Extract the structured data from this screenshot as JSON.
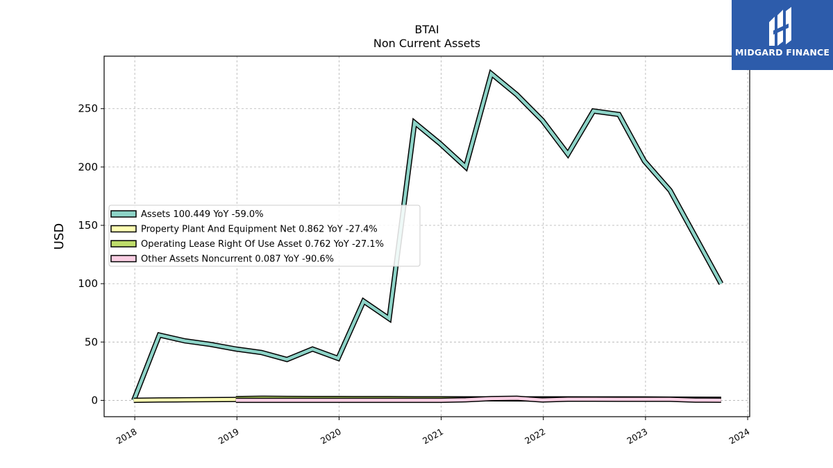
{
  "chart_data": {
    "type": "line",
    "title": "BTAI",
    "subtitle": "Non Current  Assets",
    "ylabel": "USD",
    "xlabel": "",
    "ylim": [
      -14,
      295
    ],
    "xlim": [
      2017.7,
      2024.02
    ],
    "yticks": [
      0,
      50,
      100,
      150,
      200,
      250
    ],
    "xticks": [
      "2018",
      "2019",
      "2020",
      "2021",
      "2022",
      "2023",
      "2024"
    ],
    "grid": true,
    "legend_position": "center-left",
    "series": [
      {
        "name": "Assets  100.449 YoY -59.0%",
        "color": "#8dd3c7",
        "x": [
          2017.99,
          2018.24,
          2018.49,
          2018.74,
          2018.99,
          2019.24,
          2019.49,
          2019.74,
          2019.99,
          2020.24,
          2020.49,
          2020.74,
          2020.99,
          2021.24,
          2021.49,
          2021.74,
          2021.99,
          2022.24,
          2022.49,
          2022.74,
          2022.99,
          2023.24,
          2023.49,
          2023.74
        ],
        "values": [
          0,
          56,
          51,
          48,
          44,
          41,
          35,
          44,
          36,
          85,
          70,
          238,
          220,
          200,
          280,
          262,
          240,
          211,
          248,
          245,
          205,
          180,
          140,
          100
        ]
      },
      {
        "name": "Property Plant And Equipment Net  0.862 YoY -27.4%",
        "color": "#ffffb3",
        "x": [
          2017.99,
          2018.24,
          2018.49,
          2018.74,
          2018.99,
          2019.24,
          2019.49,
          2019.74,
          2019.99,
          2020.24,
          2020.49,
          2020.74,
          2020.99,
          2021.24,
          2021.49,
          2021.74,
          2021.99,
          2022.24,
          2022.49,
          2022.74,
          2022.99,
          2023.24,
          2023.49,
          2023.74
        ],
        "values": [
          0,
          0.3,
          0.5,
          0.6,
          0.8,
          0.9,
          1.0,
          1.1,
          1.1,
          1.2,
          1.2,
          1.3,
          1.3,
          1.3,
          1.3,
          1.2,
          1.2,
          1.2,
          1.2,
          1.2,
          1.2,
          1.1,
          1.0,
          0.9
        ]
      },
      {
        "name": "Operating Lease Right Of Use Asset  0.762 YoY -27.1%",
        "color": "#bedc6a",
        "x": [
          2018.99,
          2019.24,
          2019.49,
          2019.74,
          2019.99,
          2020.24,
          2020.49,
          2020.74,
          2020.99,
          2021.24,
          2021.49,
          2021.74,
          2021.99,
          2022.24,
          2022.49,
          2022.74,
          2022.99,
          2023.24,
          2023.49,
          2023.74
        ],
        "values": [
          1.5,
          1.8,
          1.7,
          1.6,
          1.6,
          1.5,
          1.5,
          1.4,
          1.4,
          1.3,
          1.3,
          1.3,
          1.2,
          1.2,
          1.1,
          1.1,
          1.0,
          1.0,
          0.9,
          0.8
        ]
      },
      {
        "name": "Other Assets Noncurrent  0.087 YoY -90.6%",
        "color": "#fbcfe4",
        "x": [
          2018.99,
          2019.24,
          2019.49,
          2019.74,
          2019.99,
          2020.24,
          2020.49,
          2020.74,
          2020.99,
          2021.24,
          2021.49,
          2021.74,
          2021.99,
          2022.24,
          2022.49,
          2022.74,
          2022.99,
          2023.24,
          2023.49,
          2023.74
        ],
        "values": [
          0,
          0,
          0,
          0,
          0,
          0,
          0,
          0,
          0,
          0.5,
          1.5,
          1.8,
          0.3,
          1.0,
          1.0,
          0.9,
          0.9,
          0.9,
          0.2,
          0.1
        ]
      }
    ]
  },
  "logo": {
    "text": "MIDGARD FINANCE",
    "background": "#2d5cab"
  }
}
